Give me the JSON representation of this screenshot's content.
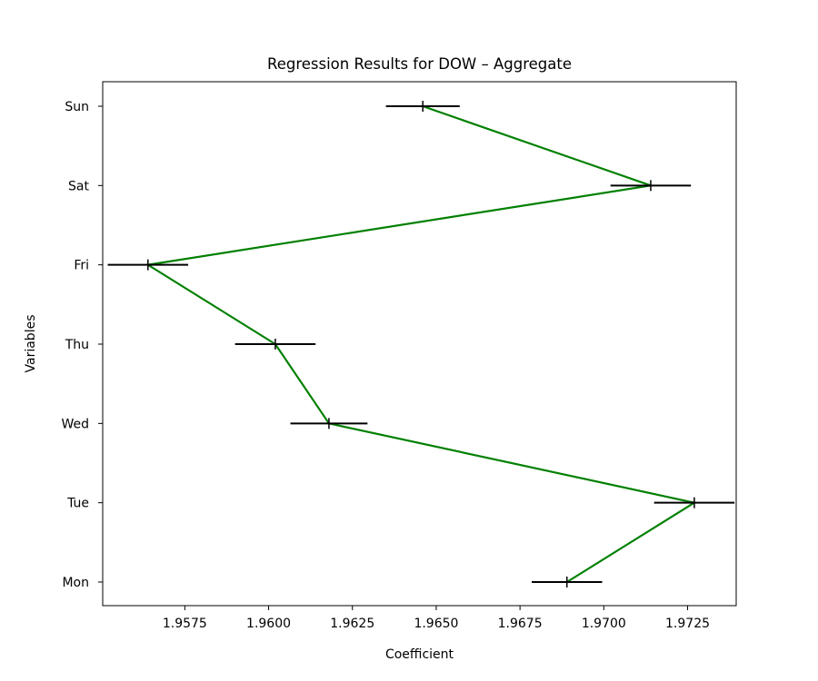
{
  "chart_data": {
    "type": "line",
    "title": "Regression Results for DOW – Aggregate",
    "xlabel": "Coefficient",
    "ylabel": "Variables",
    "xlim": [
      1.95505,
      1.97395
    ],
    "xticks": [
      1.9575,
      1.96,
      1.9625,
      1.965,
      1.9675,
      1.97,
      1.9725
    ],
    "xtick_labels": [
      "1.9575",
      "1.9600",
      "1.9625",
      "1.9650",
      "1.9675",
      "1.9700",
      "1.9725"
    ],
    "categories": [
      "Mon",
      "Tue",
      "Wed",
      "Thu",
      "Fri",
      "Sat",
      "Sun"
    ],
    "series": [
      {
        "values": [
          1.9689,
          1.9727,
          1.9618,
          1.9602,
          1.9564,
          1.9714,
          1.9646
        ],
        "errors": [
          0.00105,
          0.0012,
          0.00115,
          0.0012,
          0.0012,
          0.0012,
          0.0011
        ]
      }
    ],
    "line_color": "#008000",
    "error_color": "#000000",
    "grid": false
  }
}
